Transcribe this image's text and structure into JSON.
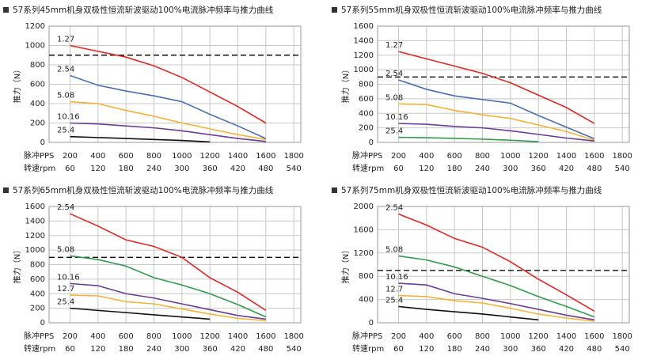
{
  "chart_data": [
    {
      "type": "line",
      "title": "57系列45mm机身双极性恒流斩波驱动100%电流脉冲频率与推力曲线",
      "y_label": "推力（N）",
      "x_label": "脉冲PPS",
      "x2_label": "转速rpm",
      "xlim": [
        50,
        1850
      ],
      "xticks": [
        200,
        400,
        600,
        800,
        1000,
        1200,
        1400,
        1600,
        1800
      ],
      "x2lim": [
        15,
        555
      ],
      "x2ticks": [
        60,
        120,
        180,
        240,
        300,
        360,
        420,
        480,
        540
      ],
      "ylim": [
        0,
        1200
      ],
      "yticks": [
        0,
        200,
        400,
        600,
        800,
        1000,
        1200
      ],
      "grid": true,
      "reference_line": 900,
      "series": [
        {
          "name": "1.27",
          "color": "#e8251f",
          "x": [
            200,
            400,
            600,
            800,
            1000,
            1200,
            1400,
            1600
          ],
          "values": [
            1000,
            940,
            880,
            790,
            670,
            520,
            370,
            200
          ]
        },
        {
          "name": "2.54",
          "color": "#4a6fb5",
          "x": [
            200,
            400,
            600,
            800,
            1000,
            1200,
            1400,
            1600
          ],
          "values": [
            690,
            590,
            530,
            480,
            420,
            290,
            170,
            40
          ]
        },
        {
          "name": "5.08",
          "color": "#f5b335",
          "x": [
            200,
            400,
            600,
            800,
            1000,
            1200,
            1400,
            1600
          ],
          "values": [
            420,
            400,
            330,
            270,
            200,
            140,
            80,
            30
          ]
        },
        {
          "name": "10.16",
          "color": "#6a3d9a",
          "x": [
            200,
            400,
            600,
            800,
            1000,
            1200,
            1400,
            1600
          ],
          "values": [
            200,
            190,
            170,
            150,
            120,
            80,
            40,
            10
          ]
        },
        {
          "name": "25.4",
          "color": "#111111",
          "x": [
            200,
            400,
            600,
            800,
            1000,
            1200
          ],
          "values": [
            60,
            50,
            40,
            30,
            20,
            5
          ]
        }
      ]
    },
    {
      "type": "line",
      "title": "57系列55mm机身双极性恒流斩波驱动100%电流脉冲频率与推力曲线",
      "y_label": "推力（N）",
      "x_label": "脉冲PPS",
      "x2_label": "转速rpm",
      "xlim": [
        50,
        1850
      ],
      "xticks": [
        200,
        400,
        600,
        800,
        1000,
        1200,
        1400,
        1600,
        1800
      ],
      "x2lim": [
        15,
        555
      ],
      "x2ticks": [
        60,
        120,
        180,
        240,
        300,
        360,
        420,
        480,
        540
      ],
      "ylim": [
        0,
        1600
      ],
      "yticks": [
        0,
        200,
        400,
        600,
        800,
        1000,
        1200,
        1400,
        1600
      ],
      "grid": true,
      "reference_line": 900,
      "series": [
        {
          "name": "1.27",
          "color": "#e8251f",
          "x": [
            200,
            400,
            600,
            800,
            1000,
            1200,
            1400,
            1600
          ],
          "values": [
            1250,
            1150,
            1050,
            950,
            820,
            650,
            480,
            260
          ]
        },
        {
          "name": "2.54",
          "color": "#4a6fb5",
          "x": [
            200,
            400,
            600,
            800,
            1000,
            1200,
            1400,
            1600
          ],
          "values": [
            860,
            730,
            640,
            590,
            540,
            370,
            210,
            50
          ]
        },
        {
          "name": "5.08",
          "color": "#f5b335",
          "x": [
            200,
            400,
            600,
            800,
            1000,
            1200,
            1400,
            1600
          ],
          "values": [
            530,
            520,
            440,
            380,
            330,
            240,
            150,
            30
          ]
        },
        {
          "name": "10.16",
          "color": "#6a3d9a",
          "x": [
            200,
            400,
            600,
            800,
            1000,
            1200,
            1400,
            1600
          ],
          "values": [
            260,
            250,
            220,
            200,
            160,
            110,
            60,
            20
          ]
        },
        {
          "name": "25.4",
          "color": "#2e9e4a",
          "x": [
            200,
            400,
            600,
            800,
            1000,
            1200
          ],
          "values": [
            70,
            65,
            55,
            45,
            30,
            10
          ]
        }
      ]
    },
    {
      "type": "line",
      "title": "57系列65mm机身双极性恒流斩波驱动100%电流脉冲频率与推力曲线",
      "y_label": "推力（N）",
      "x_label": "脉冲PPS",
      "x2_label": "转速rpm",
      "xlim": [
        50,
        1850
      ],
      "xticks": [
        200,
        400,
        600,
        800,
        1000,
        1200,
        1400,
        1600,
        1800
      ],
      "x2lim": [
        15,
        555
      ],
      "x2ticks": [
        60,
        120,
        180,
        240,
        300,
        360,
        420,
        480,
        540
      ],
      "ylim": [
        0,
        1600
      ],
      "yticks": [
        0,
        200,
        400,
        600,
        800,
        1000,
        1200,
        1400,
        1600
      ],
      "grid": true,
      "reference_line": 900,
      "series": [
        {
          "name": "2.54",
          "color": "#e8251f",
          "x": [
            200,
            400,
            600,
            800,
            1000,
            1200,
            1400,
            1600
          ],
          "values": [
            1500,
            1330,
            1140,
            1050,
            900,
            620,
            420,
            170
          ]
        },
        {
          "name": "5.08",
          "color": "#2e9e4a",
          "x": [
            200,
            400,
            600,
            800,
            1000,
            1200,
            1400,
            1600
          ],
          "values": [
            920,
            870,
            780,
            620,
            520,
            400,
            250,
            80
          ]
        },
        {
          "name": "10.16",
          "color": "#6a3d9a",
          "x": [
            200,
            400,
            600,
            800,
            1000,
            1200,
            1400,
            1600
          ],
          "values": [
            540,
            510,
            400,
            340,
            260,
            180,
            100,
            50
          ]
        },
        {
          "name": "12.7",
          "color": "#f5b335",
          "x": [
            200,
            400,
            600,
            800,
            1000,
            1200,
            1400,
            1600
          ],
          "values": [
            380,
            370,
            290,
            260,
            190,
            120,
            60,
            30
          ]
        },
        {
          "name": "25.4",
          "color": "#111111",
          "x": [
            200,
            400,
            600,
            800,
            1000,
            1200
          ],
          "values": [
            200,
            170,
            140,
            110,
            80,
            50
          ]
        }
      ]
    },
    {
      "type": "line",
      "title": "57系列75mm机身双极性恒流斩波驱动100%电流脉冲频率与推力曲线",
      "y_label": "推力（N）",
      "x_label": "脉冲PPS",
      "x2_label": "转速rpm",
      "xlim": [
        50,
        1850
      ],
      "xticks": [
        200,
        400,
        600,
        800,
        1000,
        1200,
        1400,
        1600,
        1800
      ],
      "x2lim": [
        15,
        555
      ],
      "x2ticks": [
        60,
        120,
        180,
        240,
        300,
        360,
        420,
        480,
        540
      ],
      "ylim": [
        0,
        2000
      ],
      "yticks": [
        0,
        400,
        800,
        1200,
        1600,
        2000
      ],
      "grid": true,
      "reference_line": 900,
      "series": [
        {
          "name": "2.54",
          "color": "#e8251f",
          "x": [
            200,
            400,
            600,
            800,
            1000,
            1200,
            1400,
            1600
          ],
          "values": [
            1870,
            1680,
            1450,
            1300,
            1050,
            750,
            480,
            200
          ]
        },
        {
          "name": "5.08",
          "color": "#2e9e4a",
          "x": [
            200,
            400,
            600,
            800,
            1000,
            1200,
            1400,
            1600
          ],
          "values": [
            1150,
            1080,
            960,
            800,
            640,
            450,
            280,
            100
          ]
        },
        {
          "name": "10.16",
          "color": "#6a3d9a",
          "x": [
            200,
            400,
            600,
            800,
            1000,
            1200,
            1400,
            1600
          ],
          "values": [
            680,
            650,
            500,
            420,
            330,
            230,
            130,
            50
          ]
        },
        {
          "name": "12.7",
          "color": "#f5b335",
          "x": [
            200,
            400,
            600,
            800,
            1000,
            1200,
            1400,
            1600
          ],
          "values": [
            470,
            450,
            380,
            340,
            250,
            150,
            80,
            30
          ]
        },
        {
          "name": "25.4",
          "color": "#111111",
          "x": [
            200,
            400,
            600,
            800,
            1000,
            1200
          ],
          "values": [
            280,
            230,
            190,
            150,
            100,
            50
          ]
        }
      ]
    }
  ]
}
